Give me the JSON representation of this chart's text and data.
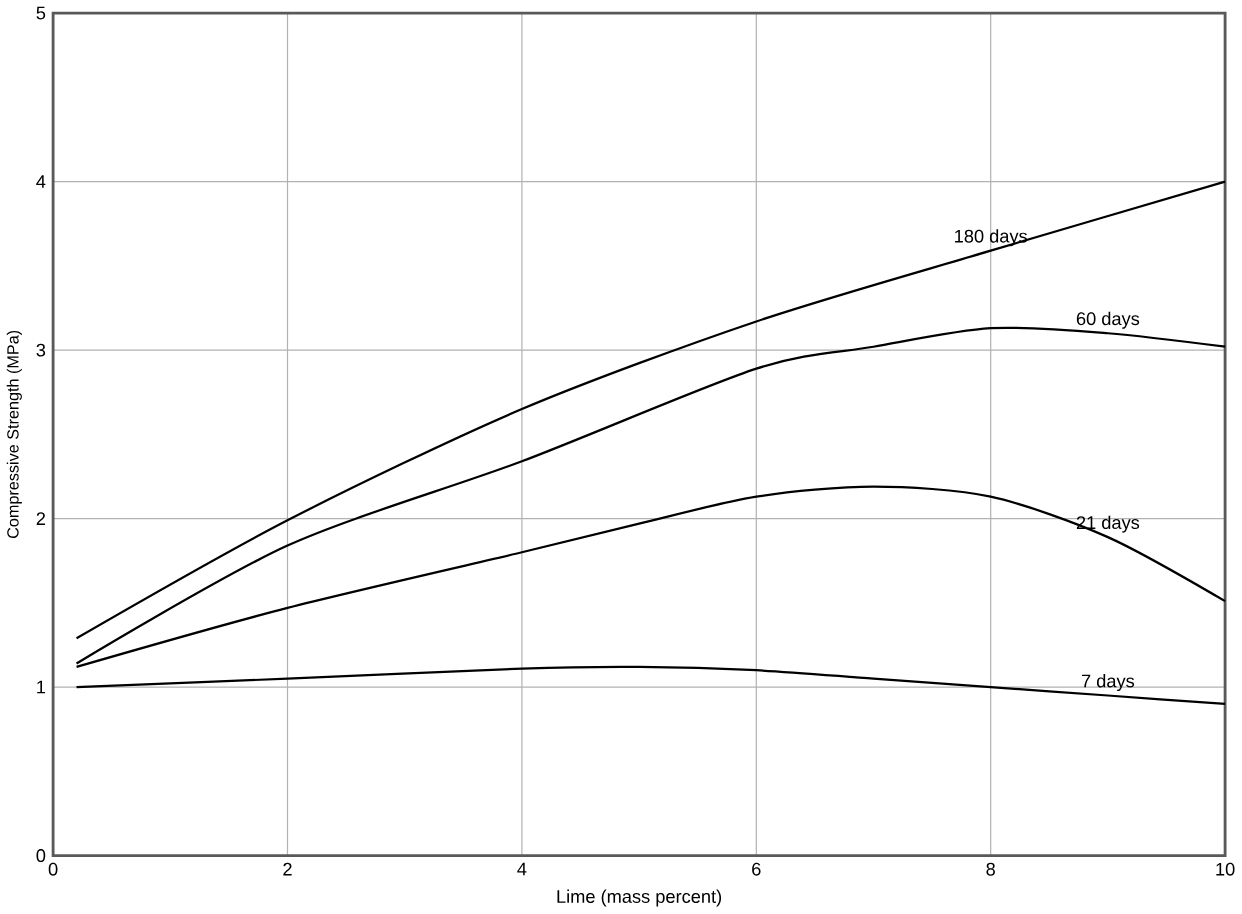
{
  "chart_data": {
    "type": "line",
    "xlabel": "Lime (mass percent)",
    "ylabel": "Compressive Strength (MPa)",
    "xlim": [
      0,
      10
    ],
    "ylim": [
      0,
      5
    ],
    "xticks": [
      0,
      2,
      4,
      6,
      8,
      10
    ],
    "yticks": [
      0,
      1,
      2,
      3,
      4,
      5
    ],
    "grid": true,
    "marker": "none",
    "line_style": "solid",
    "series": [
      {
        "name": "180 days",
        "color": "#000000",
        "x": [
          0.2,
          2,
          4,
          6,
          8,
          10
        ],
        "values": [
          1.29,
          1.99,
          2.65,
          3.17,
          3.59,
          4.0
        ]
      },
      {
        "name": "60 days",
        "color": "#000000",
        "x": [
          0.2,
          2,
          4,
          6,
          7,
          8,
          9,
          10
        ],
        "values": [
          1.14,
          1.84,
          2.34,
          2.89,
          3.02,
          3.13,
          3.1,
          3.02
        ]
      },
      {
        "name": "21 days",
        "color": "#000000",
        "x": [
          0.2,
          2,
          4,
          5,
          6,
          7,
          8,
          9,
          10
        ],
        "values": [
          1.12,
          1.47,
          1.8,
          1.97,
          2.13,
          2.19,
          2.13,
          1.89,
          1.51
        ]
      },
      {
        "name": "7 days",
        "color": "#000000",
        "x": [
          0.2,
          2,
          4,
          5,
          6,
          7,
          8,
          9,
          10
        ],
        "values": [
          1.0,
          1.05,
          1.11,
          1.12,
          1.1,
          1.05,
          1.0,
          0.95,
          0.9
        ]
      }
    ]
  }
}
